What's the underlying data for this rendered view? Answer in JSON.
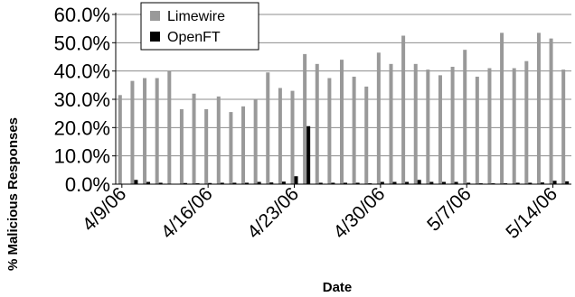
{
  "chart_data": {
    "type": "bar",
    "xlabel": "Date",
    "ylabel": "% Malicious Responses",
    "ylim": [
      0,
      60
    ],
    "y_ticks": [
      "0.0%",
      "10.0%",
      "20.0%",
      "30.0%",
      "40.0%",
      "50.0%",
      "60.0%"
    ],
    "x_tick_labels": [
      "4/9/06",
      "4/16/06",
      "4/23/06",
      "4/30/06",
      "5/7/06",
      "5/14/06"
    ],
    "grid": "horizontal",
    "legend_position": "top-left",
    "series": [
      {
        "name": "Limewire",
        "color": "#999999",
        "values": [
          31.5,
          36.5,
          37.5,
          37.5,
          40.0,
          26.5,
          32.0,
          26.5,
          31.0,
          25.5,
          27.5,
          30.0,
          39.5,
          34.0,
          33.0,
          46.0,
          42.5,
          37.5,
          44.0,
          38.0,
          34.5,
          46.5,
          42.5,
          52.5,
          42.5,
          40.5,
          38.5,
          41.5,
          47.5,
          38.0,
          41.0,
          53.5,
          41.0,
          43.5,
          53.5,
          51.5,
          40.5
        ]
      },
      {
        "name": "OpenFT",
        "color": "#000000",
        "values": [
          0,
          1.5,
          0.8,
          0.5,
          0,
          0.4,
          0.3,
          0.4,
          0.5,
          0.5,
          0.5,
          0.8,
          0.6,
          0.9,
          2.8,
          20.5,
          0.5,
          0.5,
          0.5,
          0.5,
          0.3,
          0.8,
          0.8,
          0.8,
          1.5,
          0.8,
          0.8,
          0.8,
          0.5,
          0.3,
          0.3,
          0.3,
          0.5,
          0.5,
          0.6,
          1.2,
          1.0
        ]
      }
    ]
  }
}
